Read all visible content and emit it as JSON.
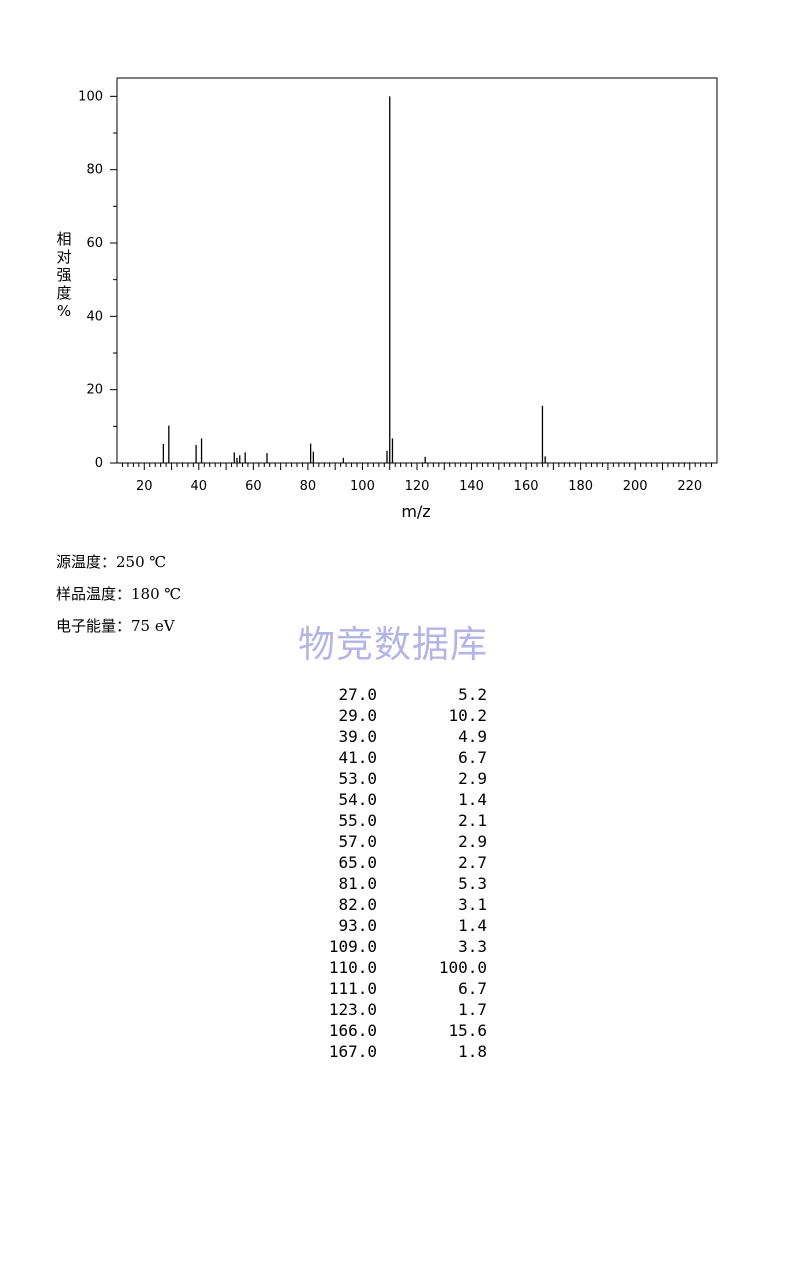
{
  "chart_data": {
    "type": "bar",
    "xlabel": "m/z",
    "ylabel": "相对强度%",
    "xlim": [
      10,
      230
    ],
    "ylim": [
      0,
      105
    ],
    "x_ticks": [
      20,
      40,
      60,
      80,
      100,
      120,
      140,
      160,
      180,
      200,
      220
    ],
    "y_ticks": [
      0,
      20,
      40,
      60,
      80,
      100
    ],
    "peaks": [
      {
        "mz": 27.0,
        "abundance": 5.2
      },
      {
        "mz": 29.0,
        "abundance": 10.2
      },
      {
        "mz": 39.0,
        "abundance": 4.9
      },
      {
        "mz": 41.0,
        "abundance": 6.7
      },
      {
        "mz": 53.0,
        "abundance": 2.9
      },
      {
        "mz": 54.0,
        "abundance": 1.4
      },
      {
        "mz": 55.0,
        "abundance": 2.1
      },
      {
        "mz": 57.0,
        "abundance": 2.9
      },
      {
        "mz": 65.0,
        "abundance": 2.7
      },
      {
        "mz": 81.0,
        "abundance": 5.3
      },
      {
        "mz": 82.0,
        "abundance": 3.1
      },
      {
        "mz": 93.0,
        "abundance": 1.4
      },
      {
        "mz": 109.0,
        "abundance": 3.3
      },
      {
        "mz": 110.0,
        "abundance": 100.0
      },
      {
        "mz": 111.0,
        "abundance": 6.7
      },
      {
        "mz": 123.0,
        "abundance": 1.7
      },
      {
        "mz": 166.0,
        "abundance": 15.6
      },
      {
        "mz": 167.0,
        "abundance": 1.8
      }
    ]
  },
  "conditions": {
    "source_temp": "源温度：250 ℃",
    "sample_temp": "样品温度：180 ℃",
    "electron_energy": "电子能量：75 eV"
  },
  "watermark": "物竞数据库",
  "table_rows": [
    {
      "mz": "27.0",
      "abundance": "5.2"
    },
    {
      "mz": "29.0",
      "abundance": "10.2"
    },
    {
      "mz": "39.0",
      "abundance": "4.9"
    },
    {
      "mz": "41.0",
      "abundance": "6.7"
    },
    {
      "mz": "53.0",
      "abundance": "2.9"
    },
    {
      "mz": "54.0",
      "abundance": "1.4"
    },
    {
      "mz": "55.0",
      "abundance": "2.1"
    },
    {
      "mz": "57.0",
      "abundance": "2.9"
    },
    {
      "mz": "65.0",
      "abundance": "2.7"
    },
    {
      "mz": "81.0",
      "abundance": "5.3"
    },
    {
      "mz": "82.0",
      "abundance": "3.1"
    },
    {
      "mz": "93.0",
      "abundance": "1.4"
    },
    {
      "mz": "109.0",
      "abundance": "3.3"
    },
    {
      "mz": "110.0",
      "abundance": "100.0"
    },
    {
      "mz": "111.0",
      "abundance": "6.7"
    },
    {
      "mz": "123.0",
      "abundance": "1.7"
    },
    {
      "mz": "166.0",
      "abundance": "15.6"
    },
    {
      "mz": "167.0",
      "abundance": "1.8"
    }
  ]
}
